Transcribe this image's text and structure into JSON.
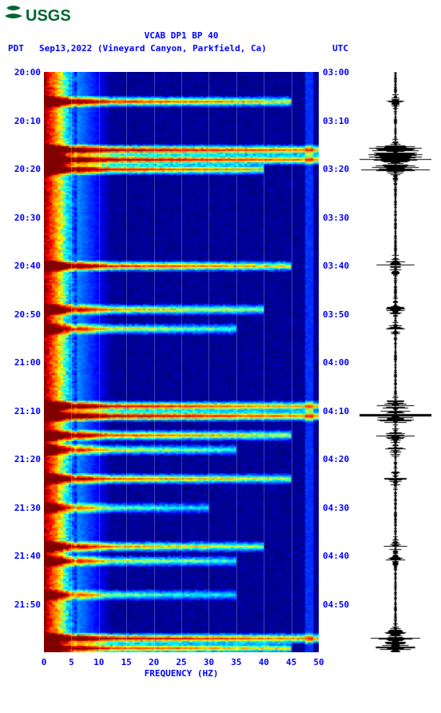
{
  "logo": {
    "text": "USGS",
    "color": "#006633"
  },
  "header": {
    "title": "VCAB DP1 BP 40",
    "left_tz": "PDT",
    "date_location": "Sep13,2022 (Vineyard Canyon, Parkfield, Ca)",
    "right_tz": "UTC",
    "text_color": "#0000ff",
    "fontsize": 11
  },
  "spectrogram": {
    "type": "spectrogram",
    "xlabel": "FREQUENCY (HZ)",
    "xlim": [
      0,
      50
    ],
    "xticks": [
      0,
      5,
      10,
      15,
      20,
      25,
      30,
      35,
      40,
      45,
      50
    ],
    "ylim_minutes": [
      0,
      120
    ],
    "left_ticks": [
      "20:00",
      "20:10",
      "20:20",
      "20:30",
      "20:40",
      "20:50",
      "21:00",
      "21:10",
      "21:20",
      "21:30",
      "21:40",
      "21:50"
    ],
    "right_ticks": [
      "03:00",
      "03:10",
      "03:20",
      "03:30",
      "03:40",
      "03:50",
      "04:00",
      "04:10",
      "04:20",
      "04:30",
      "04:40",
      "04:50"
    ],
    "background_color": "#0000a8",
    "grid_color": "rgba(255,255,255,0.25)",
    "colormap": [
      "#000066",
      "#0000ff",
      "#0080ff",
      "#00ffff",
      "#ffff00",
      "#ff8000",
      "#ff0000",
      "#800000"
    ],
    "low_freq_band": {
      "start_hz": 0,
      "end_hz": 6,
      "intensity": "high"
    },
    "events": [
      {
        "t": 6,
        "width": 45,
        "intensity": 0.85
      },
      {
        "t": 16,
        "width": 50,
        "intensity": 1.0
      },
      {
        "t": 18,
        "width": 50,
        "intensity": 1.0
      },
      {
        "t": 20,
        "width": 40,
        "intensity": 0.9
      },
      {
        "t": 40,
        "width": 45,
        "intensity": 0.85
      },
      {
        "t": 49,
        "width": 40,
        "intensity": 0.7
      },
      {
        "t": 53,
        "width": 35,
        "intensity": 0.6
      },
      {
        "t": 69,
        "width": 50,
        "intensity": 0.9
      },
      {
        "t": 71,
        "width": 50,
        "intensity": 1.0
      },
      {
        "t": 75,
        "width": 45,
        "intensity": 0.8
      },
      {
        "t": 78,
        "width": 35,
        "intensity": 0.6
      },
      {
        "t": 84,
        "width": 45,
        "intensity": 0.75
      },
      {
        "t": 90,
        "width": 30,
        "intensity": 0.5
      },
      {
        "t": 98,
        "width": 40,
        "intensity": 0.7
      },
      {
        "t": 101,
        "width": 35,
        "intensity": 0.6
      },
      {
        "t": 108,
        "width": 35,
        "intensity": 0.5
      },
      {
        "t": 117,
        "width": 50,
        "intensity": 0.95
      },
      {
        "t": 119,
        "width": 45,
        "intensity": 0.8
      }
    ]
  },
  "seismogram": {
    "color": "#000000",
    "baseline_width": 1,
    "events": [
      {
        "t": 6,
        "amp": 0.25
      },
      {
        "t": 16,
        "amp": 0.7
      },
      {
        "t": 18,
        "amp": 0.9
      },
      {
        "t": 20,
        "amp": 0.6
      },
      {
        "t": 40,
        "amp": 0.5
      },
      {
        "t": 49,
        "amp": 0.3
      },
      {
        "t": 53,
        "amp": 0.2
      },
      {
        "t": 69,
        "amp": 0.45
      },
      {
        "t": 71,
        "amp": 0.95
      },
      {
        "t": 75,
        "amp": 0.4
      },
      {
        "t": 78,
        "amp": 0.25
      },
      {
        "t": 84,
        "amp": 0.35
      },
      {
        "t": 98,
        "amp": 0.3
      },
      {
        "t": 101,
        "amp": 0.2
      },
      {
        "t": 117,
        "amp": 0.8
      },
      {
        "t": 119,
        "amp": 0.4
      }
    ]
  }
}
